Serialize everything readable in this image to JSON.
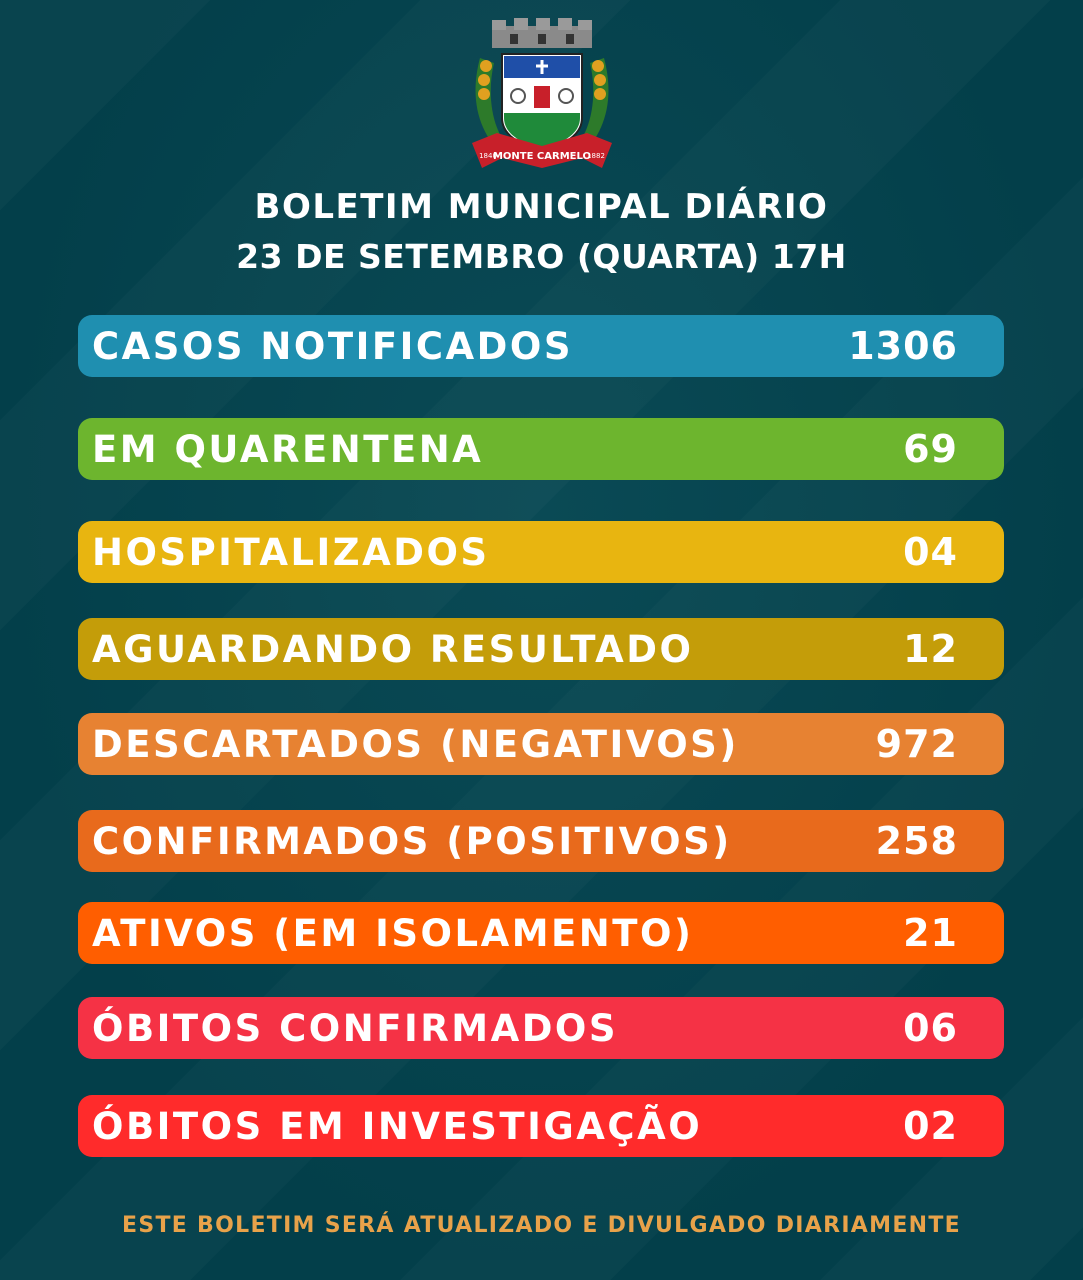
{
  "header": {
    "crest_text": "MONTE CARMELO",
    "crest_year_left": "1840",
    "crest_year_right": "1882",
    "title": "BOLETIM MUNICIPAL DIÁRIO",
    "subtitle": "23 DE SETEMBRO (QUARTA) 17H"
  },
  "stats": [
    {
      "label": "CASOS NOTIFICADOS",
      "value": "1306",
      "color": "#1f8fb0"
    },
    {
      "label": "EM QUARENTENA",
      "value": "69",
      "color": "#6db52e"
    },
    {
      "label": "HOSPITALIZADOS",
      "value": "04",
      "color": "#e8b510"
    },
    {
      "label": "AGUARDANDO RESULTADO",
      "value": "12",
      "color": "#c49d09"
    },
    {
      "label": "DESCARTADOS (NEGATIVOS)",
      "value": "972",
      "color": "#e78232"
    },
    {
      "label": "CONFIRMADOS (POSITIVOS)",
      "value": "258",
      "color": "#e86a1c"
    },
    {
      "label": "ATIVOS (EM ISOLAMENTO)",
      "value": "21",
      "color": "#ff5e00"
    },
    {
      "label": "ÓBITOS CONFIRMADOS",
      "value": "06",
      "color": "#f53245"
    },
    {
      "label": "ÓBITOS EM INVESTIGAÇÃO",
      "value": "02",
      "color": "#ff2b2b"
    }
  ],
  "footer": {
    "text": "ESTE BOLETIM SERÁ ATUALIZADO E DIVULGADO DIARIAMENTE"
  }
}
